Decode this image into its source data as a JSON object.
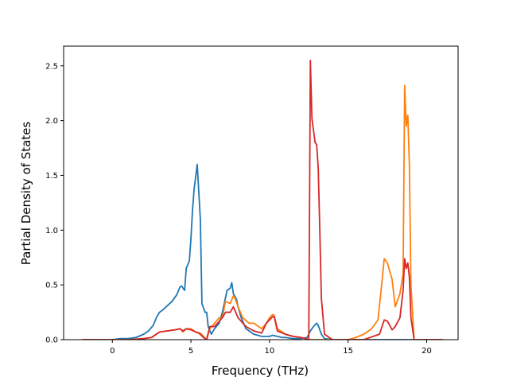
{
  "chart_data": {
    "type": "line",
    "title": "",
    "xlabel": "Frequency (THz)",
    "ylabel": "Partial Density of States",
    "xlim": [
      -3.1,
      22.0
    ],
    "ylim": [
      0.0,
      2.68
    ],
    "xticks": [
      0,
      5,
      10,
      15,
      20
    ],
    "yticks": [
      0.0,
      0.5,
      1.0,
      1.5,
      2.0,
      2.5
    ],
    "xtick_labels": [
      "0",
      "5",
      "10",
      "15",
      "20"
    ],
    "ytick_labels": [
      "0.0",
      "0.5",
      "1.0",
      "1.5",
      "2.0",
      "2.5"
    ],
    "grid": false,
    "legend": null,
    "series": [
      {
        "color": "#1f77b4",
        "x": [
          -1.9,
          0.0,
          0.5,
          1.0,
          1.5,
          2.0,
          2.3,
          2.6,
          2.8,
          3.0,
          3.2,
          3.5,
          3.8,
          4.0,
          4.1,
          4.3,
          4.4,
          4.5,
          4.6,
          4.7,
          4.9,
          5.0,
          5.1,
          5.2,
          5.4,
          5.5,
          5.6,
          5.7,
          5.9,
          6.0,
          6.1,
          6.3,
          6.5,
          6.8,
          7.0,
          7.3,
          7.5,
          7.6,
          7.7,
          7.9,
          8.0,
          8.2,
          8.5,
          9.0,
          9.5,
          10.0,
          10.2,
          10.5,
          10.8,
          11.0,
          11.5,
          12.0,
          12.4,
          12.6,
          12.8,
          13.0,
          13.1,
          13.3,
          13.5,
          14.0,
          16.0,
          18.0,
          19.0,
          21.0
        ],
        "y": [
          0.0,
          0.0,
          0.01,
          0.01,
          0.02,
          0.05,
          0.08,
          0.13,
          0.2,
          0.25,
          0.27,
          0.31,
          0.35,
          0.39,
          0.41,
          0.48,
          0.49,
          0.47,
          0.45,
          0.65,
          0.72,
          0.92,
          1.18,
          1.37,
          1.6,
          1.35,
          1.1,
          0.33,
          0.25,
          0.25,
          0.12,
          0.05,
          0.1,
          0.15,
          0.25,
          0.45,
          0.47,
          0.52,
          0.42,
          0.37,
          0.3,
          0.2,
          0.1,
          0.05,
          0.03,
          0.03,
          0.04,
          0.03,
          0.02,
          0.02,
          0.01,
          0.01,
          0.02,
          0.08,
          0.12,
          0.15,
          0.13,
          0.05,
          0.01,
          0.0,
          0.0,
          0.0,
          0.0,
          0.0
        ]
      },
      {
        "color": "#ff7f0e",
        "x": [
          -1.9,
          0.0,
          1.0,
          2.0,
          2.5,
          3.0,
          3.5,
          4.0,
          4.3,
          4.5,
          4.7,
          5.0,
          5.3,
          5.6,
          6.0,
          6.2,
          6.5,
          6.8,
          7.0,
          7.2,
          7.5,
          7.7,
          7.8,
          8.0,
          8.3,
          8.7,
          9.0,
          9.5,
          9.8,
          10.0,
          10.2,
          10.3,
          10.5,
          11.0,
          11.5,
          12.0,
          12.5,
          13.0,
          13.5,
          15.0,
          15.5,
          16.0,
          16.5,
          16.9,
          17.1,
          17.3,
          17.5,
          17.8,
          18.0,
          18.3,
          18.5,
          18.6,
          18.7,
          18.8,
          18.9,
          19.0,
          19.2,
          20.0,
          21.0
        ],
        "y": [
          0.0,
          0.0,
          0.0,
          0.01,
          0.02,
          0.07,
          0.08,
          0.09,
          0.1,
          0.07,
          0.1,
          0.1,
          0.07,
          0.06,
          0.0,
          0.1,
          0.15,
          0.2,
          0.2,
          0.35,
          0.33,
          0.4,
          0.38,
          0.3,
          0.2,
          0.15,
          0.15,
          0.1,
          0.15,
          0.2,
          0.23,
          0.22,
          0.1,
          0.05,
          0.03,
          0.02,
          0.0,
          0.0,
          0.0,
          0.0,
          0.02,
          0.05,
          0.1,
          0.18,
          0.45,
          0.74,
          0.7,
          0.55,
          0.3,
          0.42,
          0.6,
          2.32,
          1.95,
          2.05,
          1.6,
          0.5,
          0.0,
          0.0,
          0.0
        ]
      },
      {
        "color": "#d62728",
        "x": [
          -1.9,
          0.0,
          1.0,
          2.0,
          2.5,
          3.0,
          3.5,
          4.0,
          4.3,
          4.5,
          4.7,
          5.0,
          5.3,
          5.5,
          5.8,
          6.0,
          6.2,
          6.5,
          7.0,
          7.2,
          7.5,
          7.7,
          8.0,
          8.5,
          9.0,
          9.5,
          9.8,
          10.0,
          10.2,
          10.3,
          10.5,
          11.0,
          11.5,
          12.0,
          12.3,
          12.5,
          12.6,
          12.7,
          12.9,
          13.0,
          13.1,
          13.2,
          13.3,
          13.5,
          14.0,
          16.0,
          17.0,
          17.3,
          17.5,
          17.8,
          18.0,
          18.3,
          18.5,
          18.6,
          18.7,
          18.8,
          18.9,
          19.0,
          19.2,
          20.0,
          21.0
        ],
        "y": [
          0.0,
          0.0,
          0.0,
          0.01,
          0.02,
          0.07,
          0.08,
          0.09,
          0.1,
          0.08,
          0.1,
          0.09,
          0.07,
          0.06,
          0.02,
          0.0,
          0.12,
          0.12,
          0.2,
          0.25,
          0.25,
          0.3,
          0.2,
          0.12,
          0.08,
          0.06,
          0.15,
          0.18,
          0.21,
          0.21,
          0.08,
          0.05,
          0.03,
          0.02,
          0.01,
          0.0,
          2.55,
          2.02,
          1.8,
          1.78,
          1.57,
          1.0,
          0.38,
          0.05,
          0.0,
          0.0,
          0.05,
          0.18,
          0.17,
          0.09,
          0.12,
          0.2,
          0.45,
          0.74,
          0.65,
          0.7,
          0.57,
          0.2,
          0.0,
          0.0,
          0.0
        ]
      }
    ]
  }
}
